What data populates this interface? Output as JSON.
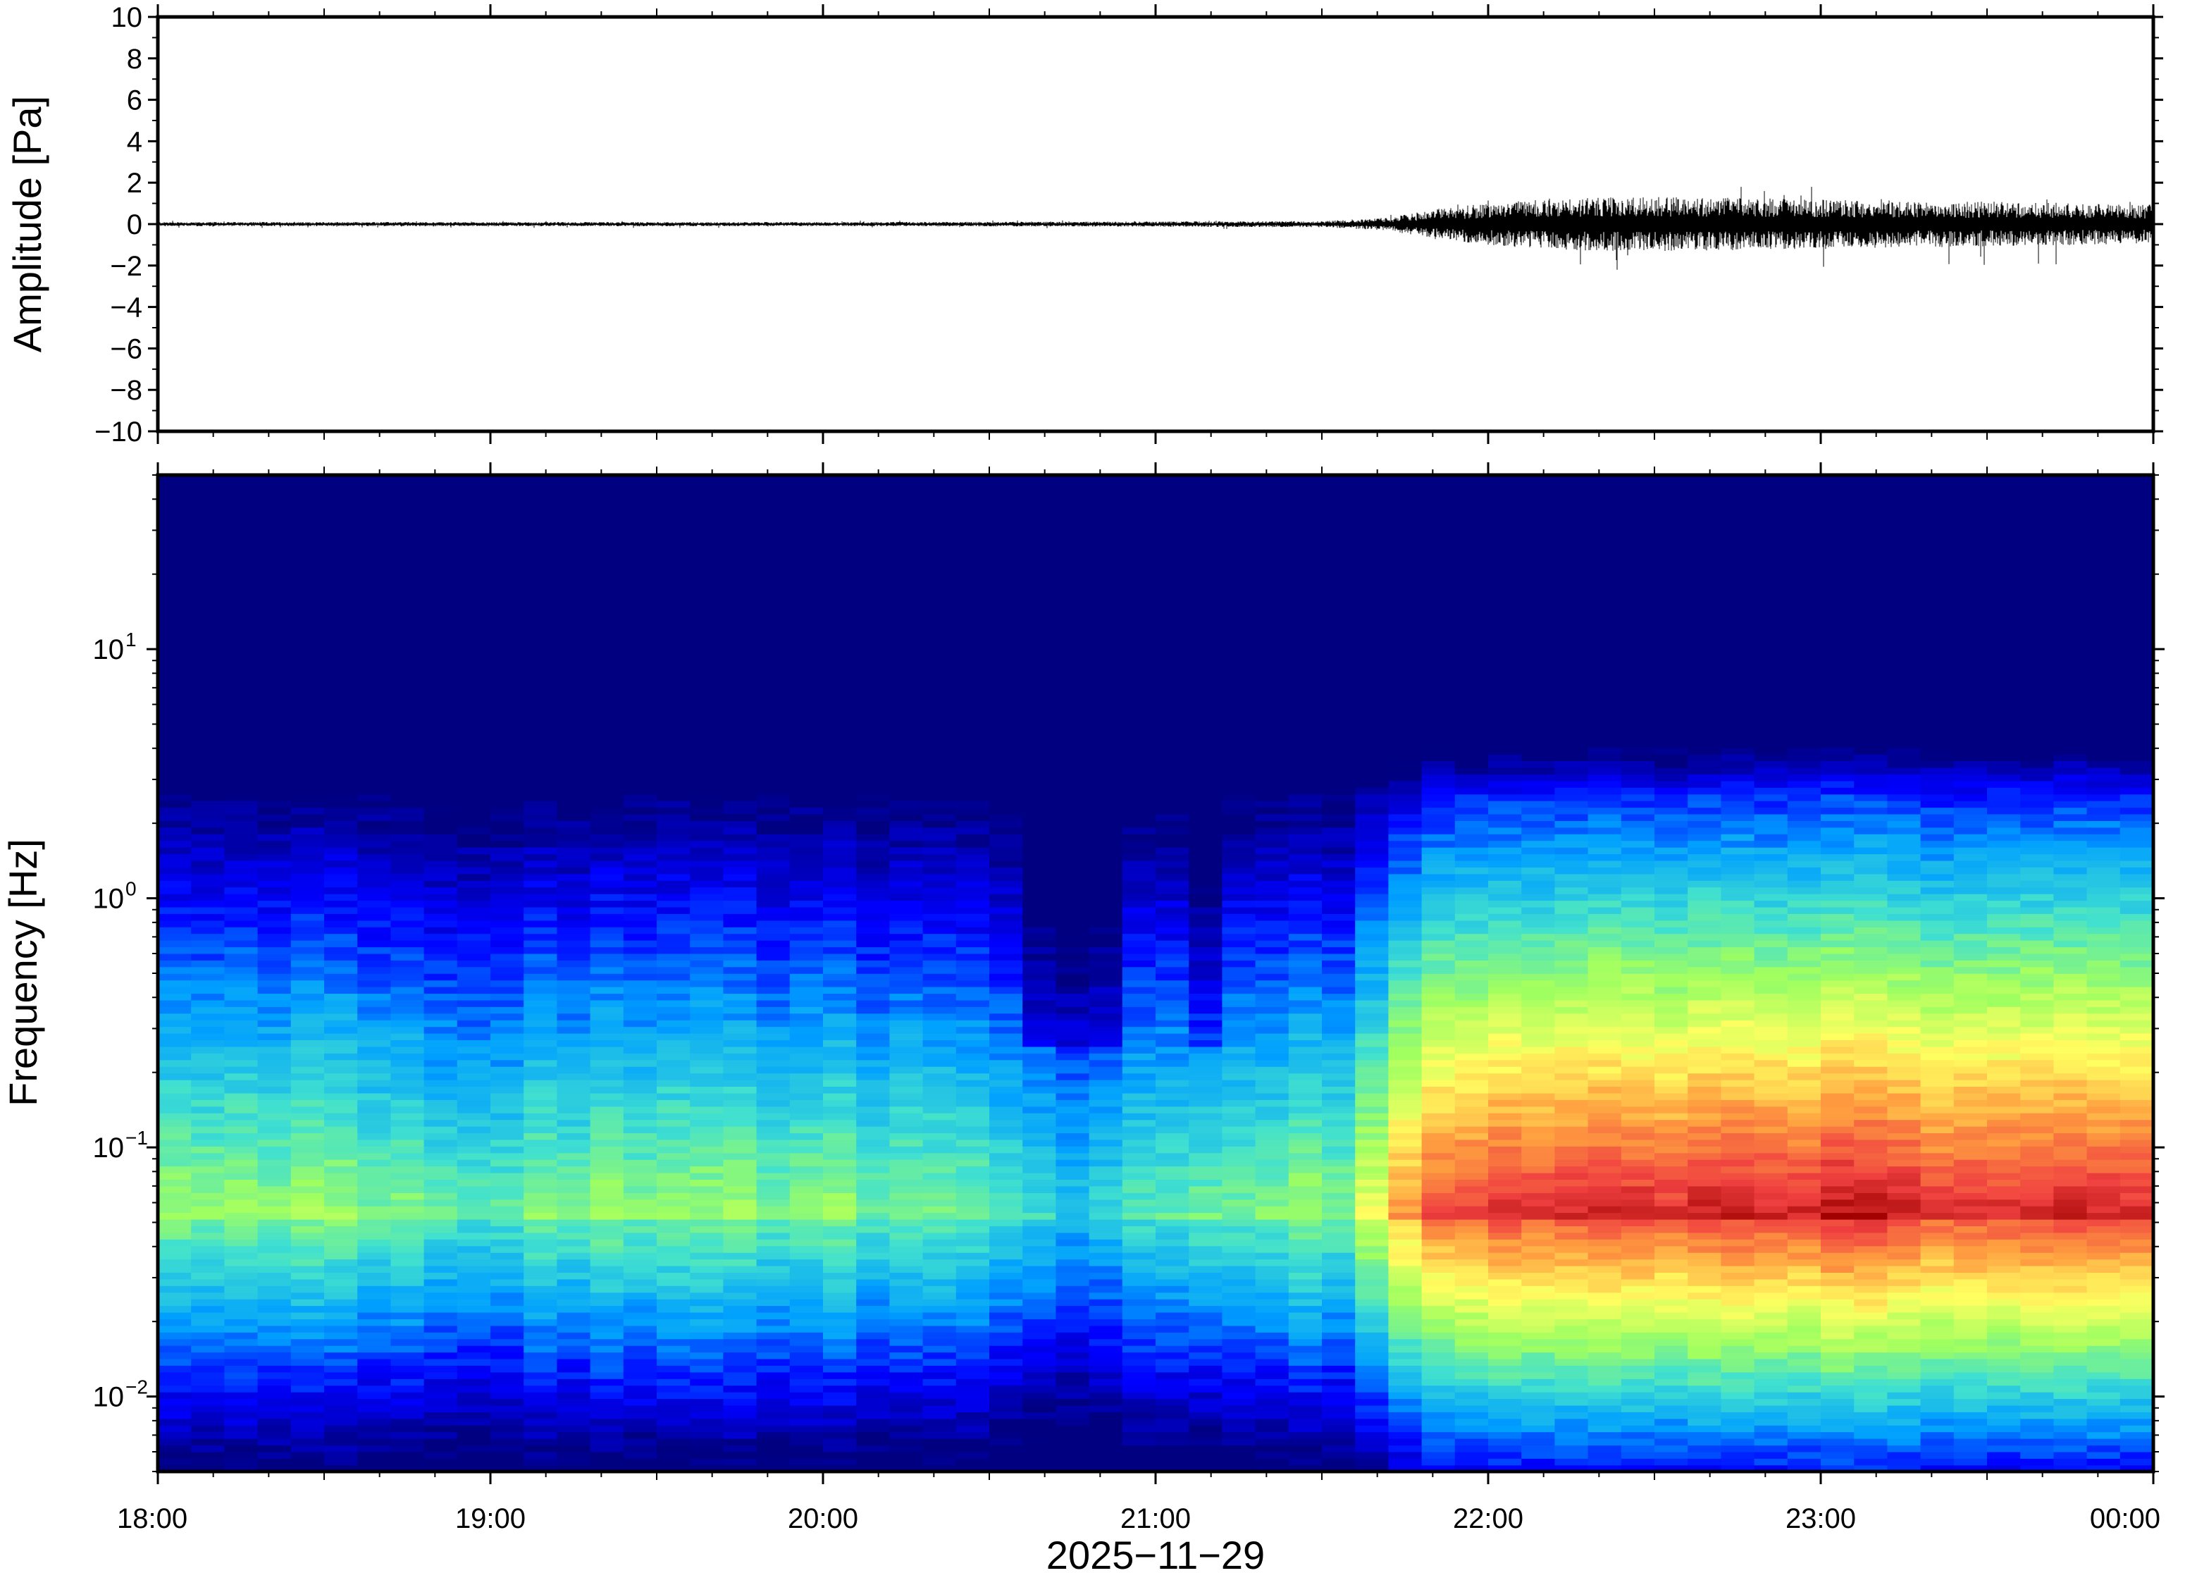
{
  "chart_data": [
    {
      "type": "line",
      "panel": "waveform",
      "xlabel": "",
      "ylabel": "Amplitude [Pa]",
      "ylim": [
        -10,
        10
      ],
      "yticks": [
        10,
        8,
        6,
        4,
        2,
        0,
        -2,
        -4,
        -6,
        -8,
        -10
      ],
      "ytick_labels": [
        "10",
        "8",
        "6",
        "4",
        "2",
        "0",
        "−2",
        "−4",
        "−6",
        "−8",
        "−10"
      ],
      "xlim": [
        "18:00",
        "00:00"
      ],
      "series_color": "#000000",
      "envelope": {
        "x_hours": [
          18.0,
          19.0,
          20.0,
          21.0,
          21.5,
          21.7,
          21.85,
          22.0,
          22.2,
          22.5,
          22.8,
          23.0,
          23.3,
          23.6,
          24.0
        ],
        "amplitude_pa": [
          0.08,
          0.08,
          0.08,
          0.1,
          0.12,
          0.25,
          0.6,
          0.8,
          1.0,
          1.05,
          1.0,
          0.95,
          0.9,
          0.85,
          0.75
        ],
        "peak_max_pa": 1.8,
        "peak_min_pa": -2.2
      }
    },
    {
      "type": "heatmap",
      "panel": "spectrogram",
      "xlabel": "2025−11−29",
      "ylabel": "Frequency [Hz]",
      "xticks": [
        "18:00",
        "19:00",
        "20:00",
        "21:00",
        "22:00",
        "23:00",
        "00:00"
      ],
      "yscale": "log",
      "ylim_hz": [
        0.005,
        50
      ],
      "yticks": [
        0.01,
        0.1,
        1,
        10
      ],
      "ytick_labels": [
        {
          "base": "10",
          "exp": "−2"
        },
        {
          "base": "10",
          "exp": "−1"
        },
        {
          "base": "10",
          "exp": "0"
        },
        {
          "base": "10",
          "exp": "1"
        }
      ],
      "colormap": "jet",
      "colormap_stops": [
        "#000080",
        "#0000ff",
        "#00a0ff",
        "#40e0d0",
        "#a0ff60",
        "#ffff60",
        "#ffa040",
        "#f04040",
        "#a00000"
      ],
      "time_bins": 60,
      "intensity_profile": {
        "x_hours": [
          18.0,
          18.5,
          19.0,
          19.5,
          20.0,
          20.5,
          20.75,
          21.0,
          21.3,
          21.6,
          21.7,
          21.8,
          22.0,
          22.5,
          23.0,
          23.5,
          24.0
        ],
        "level": [
          0.32,
          0.3,
          0.24,
          0.28,
          0.27,
          0.24,
          0.18,
          0.22,
          0.26,
          0.3,
          0.5,
          0.62,
          0.68,
          0.7,
          0.72,
          0.7,
          0.68
        ]
      }
    }
  ]
}
